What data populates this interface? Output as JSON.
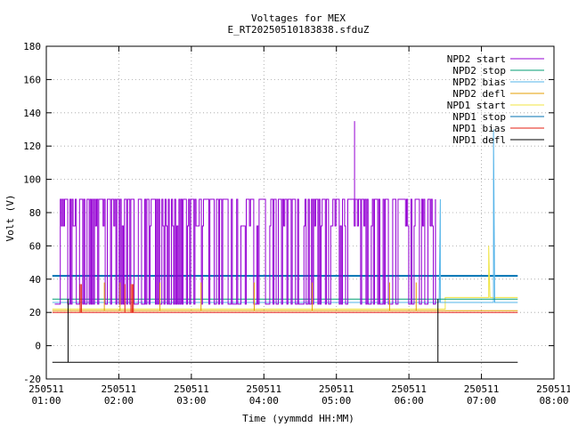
{
  "chart_data": {
    "type": "line",
    "title": "Voltages for MEX",
    "subtitle": "E_RT20250510183838.sfduZ",
    "xlabel": "Time (yymmdd HH:MM)",
    "ylabel": "Volt (V)",
    "xlim": [
      "2025-05-11 01:00",
      "2025-05-11 08:00"
    ],
    "ylim": [
      -20,
      180
    ],
    "grid": true,
    "legend_position": "top-right",
    "x_ticks": [
      {
        "date": "250511",
        "time": "01:00"
      },
      {
        "date": "250511",
        "time": "02:00"
      },
      {
        "date": "250511",
        "time": "03:00"
      },
      {
        "date": "250511",
        "time": "04:00"
      },
      {
        "date": "250511",
        "time": "05:00"
      },
      {
        "date": "250511",
        "time": "06:00"
      },
      {
        "date": "250511",
        "time": "07:00"
      },
      {
        "date": "250511",
        "time": "08:00"
      }
    ],
    "y_ticks": [
      "-20",
      "0",
      "20",
      "40",
      "60",
      "80",
      "100",
      "120",
      "140",
      "160",
      "180"
    ],
    "series": [
      {
        "name": "NPD2 start",
        "color": "#9400d3",
        "x": [
          "01:07",
          "01:08",
          "01:08",
          "05:14",
          "05:15",
          "05:15",
          "06:22",
          "06:22"
        ],
        "y": [
          25,
          25,
          88,
          88,
          88,
          135,
          88,
          25
        ],
        "note_ranges": {
          "oscillation": {
            "from": "01:08",
            "to": "06:22",
            "low": 25,
            "high": 88
          }
        }
      },
      {
        "name": "NPD2 stop",
        "color": "#009e73",
        "x": [
          "01:05",
          "06:25",
          "06:26",
          "07:30"
        ],
        "y": [
          28,
          28,
          28,
          28
        ]
      },
      {
        "name": "NPD2 bias",
        "color": "#56b4e9",
        "x": [
          "01:05",
          "06:25",
          "06:26",
          "06:26",
          "07:10",
          "07:10",
          "07:11",
          "07:30"
        ],
        "y": [
          26,
          26,
          88,
          26,
          26,
          130,
          26,
          26
        ]
      },
      {
        "name": "NPD2 defl",
        "color": "#e69f00",
        "x": [
          "01:05",
          "07:30"
        ],
        "y": [
          21,
          21
        ]
      },
      {
        "name": "NPD1 start",
        "color": "#f0e442",
        "x": [
          "01:05",
          "06:30",
          "06:30",
          "07:06",
          "07:06",
          "07:07",
          "07:30"
        ],
        "y": [
          22,
          22,
          29,
          29,
          60,
          29,
          29
        ]
      },
      {
        "name": "NPD1 stop",
        "color": "#0072b2",
        "x": [
          "01:05",
          "07:30"
        ],
        "y": [
          42,
          42
        ]
      },
      {
        "name": "NPD1 bias",
        "color": "#e51e10",
        "x": [
          "01:05",
          "07:30"
        ],
        "y": [
          20,
          20
        ]
      },
      {
        "name": "NPD1 defl",
        "color": "#000000",
        "x": [
          "01:05",
          "07:30"
        ],
        "y": [
          -10,
          -10
        ]
      }
    ]
  }
}
